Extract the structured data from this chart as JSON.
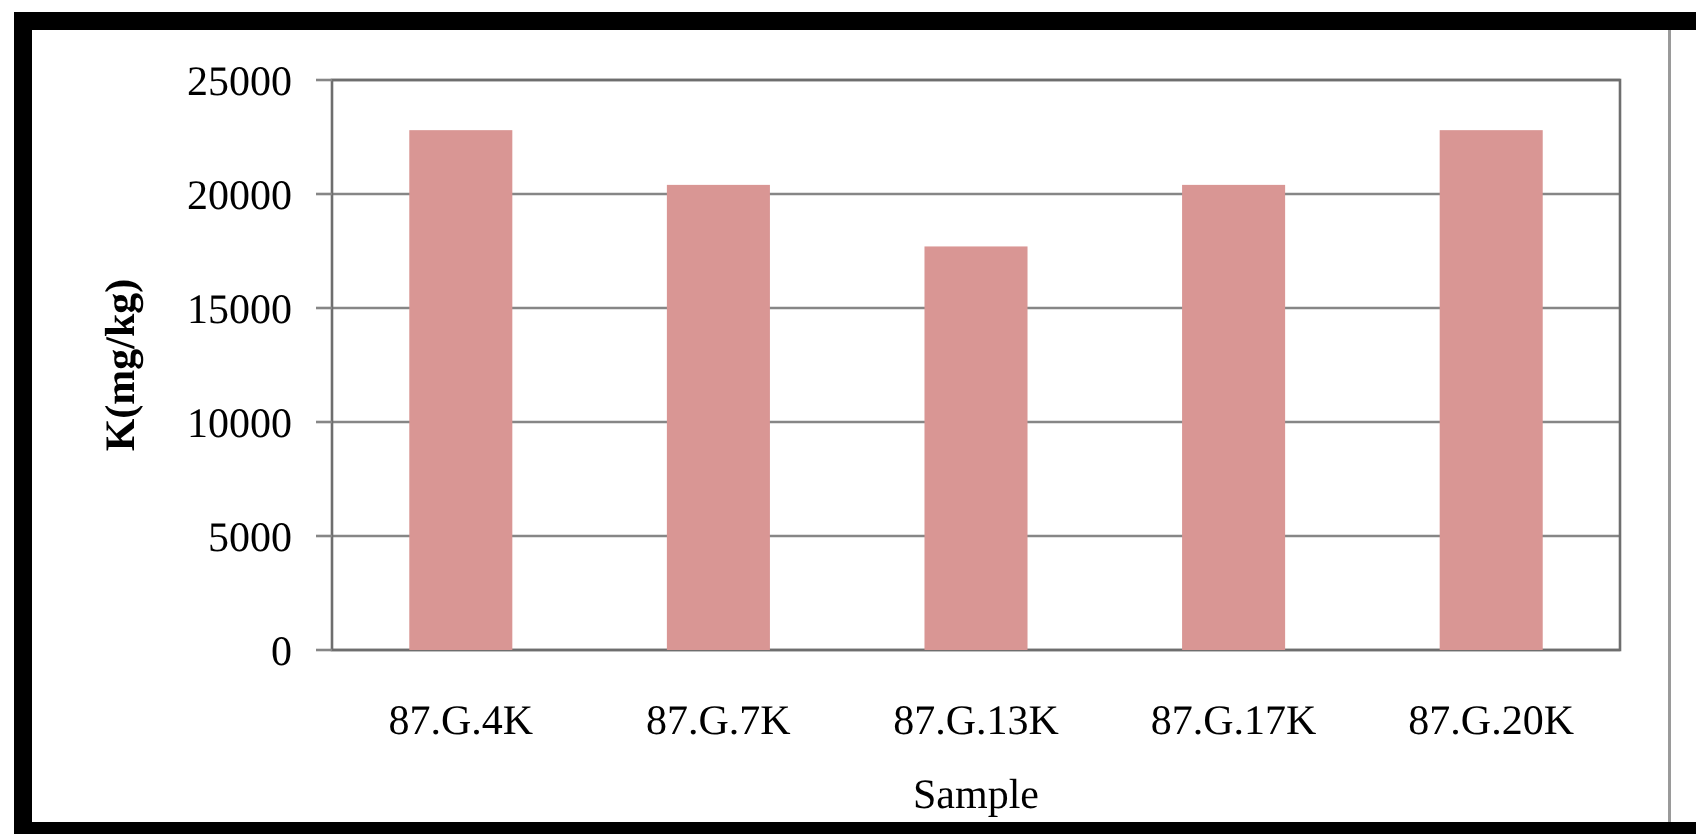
{
  "chart_data": {
    "type": "bar",
    "ylabel": "K(mg/kg)",
    "xlabel": "Sample",
    "categories": [
      "87.G.4K",
      "87.G.7K",
      "87.G.13K",
      "87.G.17K",
      "87.G.20K"
    ],
    "values": [
      22800,
      20400,
      17700,
      20400,
      22800
    ],
    "color": "#d99694",
    "ylim": [
      0,
      25000
    ],
    "yticks": [
      0,
      5000,
      10000,
      15000,
      20000,
      25000
    ],
    "grid": "y"
  }
}
